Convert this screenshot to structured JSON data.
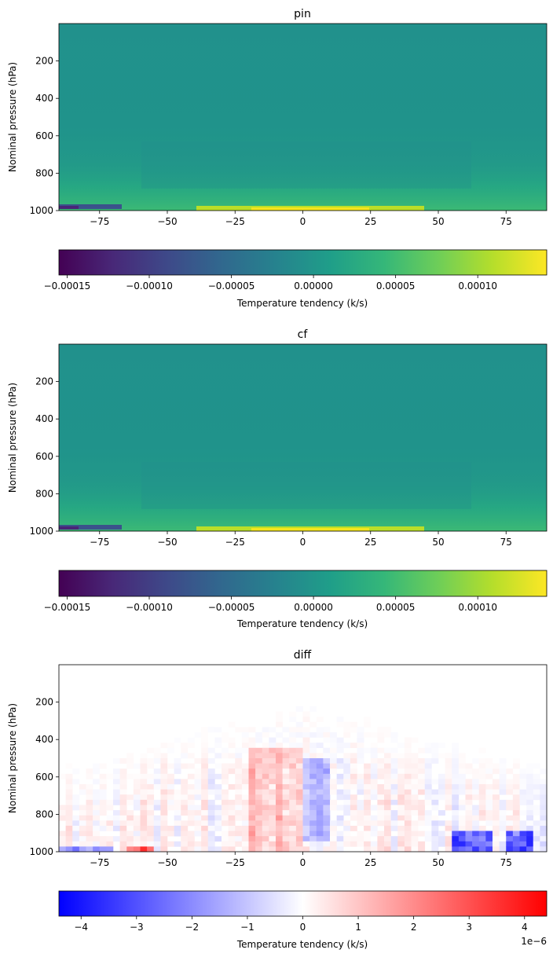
{
  "chart_data": [
    {
      "type": "heatmap",
      "title": "pin",
      "xlabel": "",
      "ylabel": "Nominal pressure (hPa)",
      "xlim": [
        -90,
        90
      ],
      "ylim": [
        1000,
        0
      ],
      "xticks": [
        -75,
        -50,
        -25,
        0,
        25,
        50,
        75
      ],
      "xtick_labels": [
        "−75",
        "−50",
        "−25",
        "0",
        "25",
        "50",
        "75"
      ],
      "yticks": [
        200,
        400,
        600,
        800,
        1000
      ],
      "ytick_labels": [
        "200",
        "400",
        "600",
        "800",
        "1000"
      ],
      "colormap": "viridis",
      "colorbar": {
        "label": "Temperature tendency (k/s)",
        "range": [
          -0.000155,
          0.000142
        ],
        "ticks": [
          -0.00015,
          -0.0001,
          -5e-05,
          0,
          5e-05,
          0.0001
        ],
        "tick_labels": [
          "−0.00015",
          "−0.00010",
          "−0.00005",
          "0.00000",
          "0.00005",
          "0.00010"
        ],
        "offset_text": ""
      },
      "features": [
        {
          "lat_range": [
            -90,
            -67
          ],
          "pressure_range": [
            970,
            995
          ],
          "value": -0.00012
        },
        {
          "lat_range": [
            -40,
            40
          ],
          "pressure_range": [
            980,
            1000
          ],
          "value": 0.00011
        },
        {
          "lat_range": [
            -60,
            60
          ],
          "pressure_range": [
            700,
            880
          ],
          "value": -1.2e-05
        }
      ]
    },
    {
      "type": "heatmap",
      "title": "cf",
      "xlabel": "",
      "ylabel": "Nominal pressure (hPa)",
      "xlim": [
        -90,
        90
      ],
      "ylim": [
        1000,
        0
      ],
      "xticks": [
        -75,
        -50,
        -25,
        0,
        25,
        50,
        75
      ],
      "xtick_labels": [
        "−75",
        "−50",
        "−25",
        "0",
        "25",
        "50",
        "75"
      ],
      "yticks": [
        200,
        400,
        600,
        800,
        1000
      ],
      "ytick_labels": [
        "200",
        "400",
        "600",
        "800",
        "1000"
      ],
      "colormap": "viridis",
      "colorbar": {
        "label": "Temperature tendency (k/s)",
        "range": [
          -0.000155,
          0.000142
        ],
        "ticks": [
          -0.00015,
          -0.0001,
          -5e-05,
          0,
          5e-05,
          0.0001
        ],
        "tick_labels": [
          "−0.00015",
          "−0.00010",
          "−0.00005",
          "0.00000",
          "0.00005",
          "0.00010"
        ],
        "offset_text": ""
      },
      "features": [
        {
          "lat_range": [
            -90,
            -67
          ],
          "pressure_range": [
            970,
            995
          ],
          "value": -0.00012
        },
        {
          "lat_range": [
            -40,
            40
          ],
          "pressure_range": [
            980,
            1000
          ],
          "value": 0.00011
        },
        {
          "lat_range": [
            -60,
            60
          ],
          "pressure_range": [
            700,
            880
          ],
          "value": -1.2e-05
        }
      ]
    },
    {
      "type": "heatmap",
      "title": "diff",
      "xlabel": "",
      "ylabel": "Nominal pressure (hPa)",
      "xlim": [
        -90,
        90
      ],
      "ylim": [
        1000,
        0
      ],
      "xticks": [
        -75,
        -50,
        -25,
        0,
        25,
        50,
        75
      ],
      "xtick_labels": [
        "−75",
        "−50",
        "−25",
        "0",
        "25",
        "50",
        "75"
      ],
      "yticks": [
        200,
        400,
        600,
        800,
        1000
      ],
      "ytick_labels": [
        "200",
        "400",
        "600",
        "800",
        "1000"
      ],
      "colormap": "bwr",
      "colorbar": {
        "label": "Temperature tendency (k/s)",
        "range": [
          -4.4e-06,
          4.4e-06
        ],
        "ticks": [
          -4e-06,
          -3e-06,
          -2e-06,
          -1e-06,
          0,
          1e-06,
          2e-06,
          3e-06,
          4e-06
        ],
        "tick_labels": [
          "−4",
          "−3",
          "−2",
          "−1",
          "0",
          "1",
          "2",
          "3",
          "4"
        ],
        "offset_text": "1e−6"
      },
      "features": [
        {
          "lat_range": [
            -20,
            0
          ],
          "pressure_range": [
            450,
            1000
          ],
          "value": 1.2e-06
        },
        {
          "lat_range": [
            0,
            10
          ],
          "pressure_range": [
            500,
            950
          ],
          "value": -1.5e-06
        },
        {
          "lat_range": [
            55,
            70
          ],
          "pressure_range": [
            900,
            1000
          ],
          "value": -3.5e-06
        },
        {
          "lat_range": [
            75,
            85
          ],
          "pressure_range": [
            880,
            1000
          ],
          "value": -3.8e-06
        },
        {
          "lat_range": [
            -65,
            -55
          ],
          "pressure_range": [
            960,
            1000
          ],
          "value": 3e-06
        },
        {
          "lat_range": [
            -90,
            -70
          ],
          "pressure_range": [
            970,
            1000
          ],
          "value": -2.5e-06
        }
      ]
    }
  ]
}
